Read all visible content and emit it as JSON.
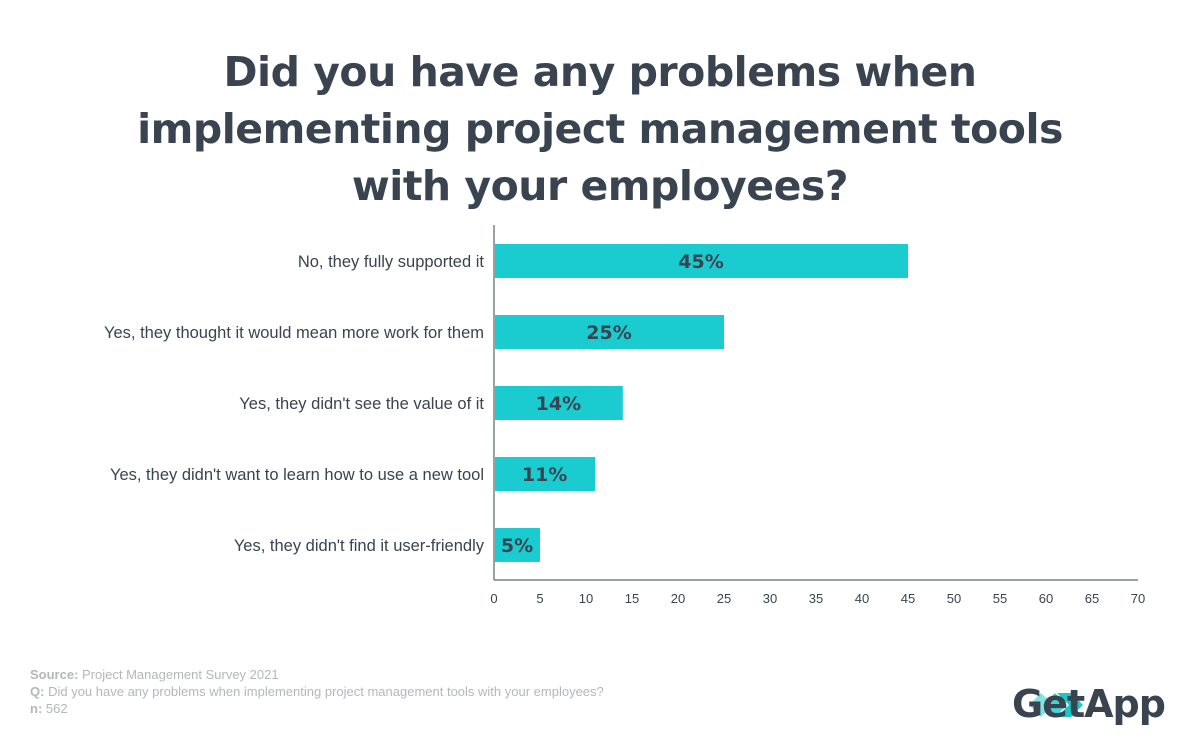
{
  "title_lines": [
    "Did you have any problems when",
    "implementing project management tools",
    "with your employees?"
  ],
  "chart_data": {
    "type": "bar",
    "orientation": "horizontal",
    "title": "Did you have any problems when implementing project management tools with your employees?",
    "categories": [
      "No, they fully supported it",
      "Yes, they thought it would mean more work for them",
      "Yes, they didn't see the value of it",
      "Yes, they didn't want to learn how to use a new tool",
      "Yes, they didn't find it user-friendly"
    ],
    "values": [
      45,
      25,
      14,
      11,
      5
    ],
    "data_labels": [
      "45%",
      "25%",
      "14%",
      "11%",
      "5%"
    ],
    "xlim": [
      0,
      70
    ],
    "xticks": [
      0,
      5,
      10,
      15,
      20,
      25,
      30,
      35,
      40,
      45,
      50,
      55,
      60,
      65,
      70
    ],
    "grid": false,
    "colors": {
      "bar": "#1accd0",
      "label": "#3a4350",
      "axis": "#3a4350",
      "tick": "#3a4350"
    }
  },
  "footer": {
    "source_label": "Source:",
    "source_text": "Project Management Survey 2021",
    "q_label": "Q:",
    "q_text": "Did you have any problems when implementing project management tools with your employees?",
    "n_label": "n:",
    "n_text": "562"
  },
  "logo": {
    "text": "GetApp",
    "icon": "getapp-chevrons-icon",
    "color": "#2ed0cf"
  }
}
